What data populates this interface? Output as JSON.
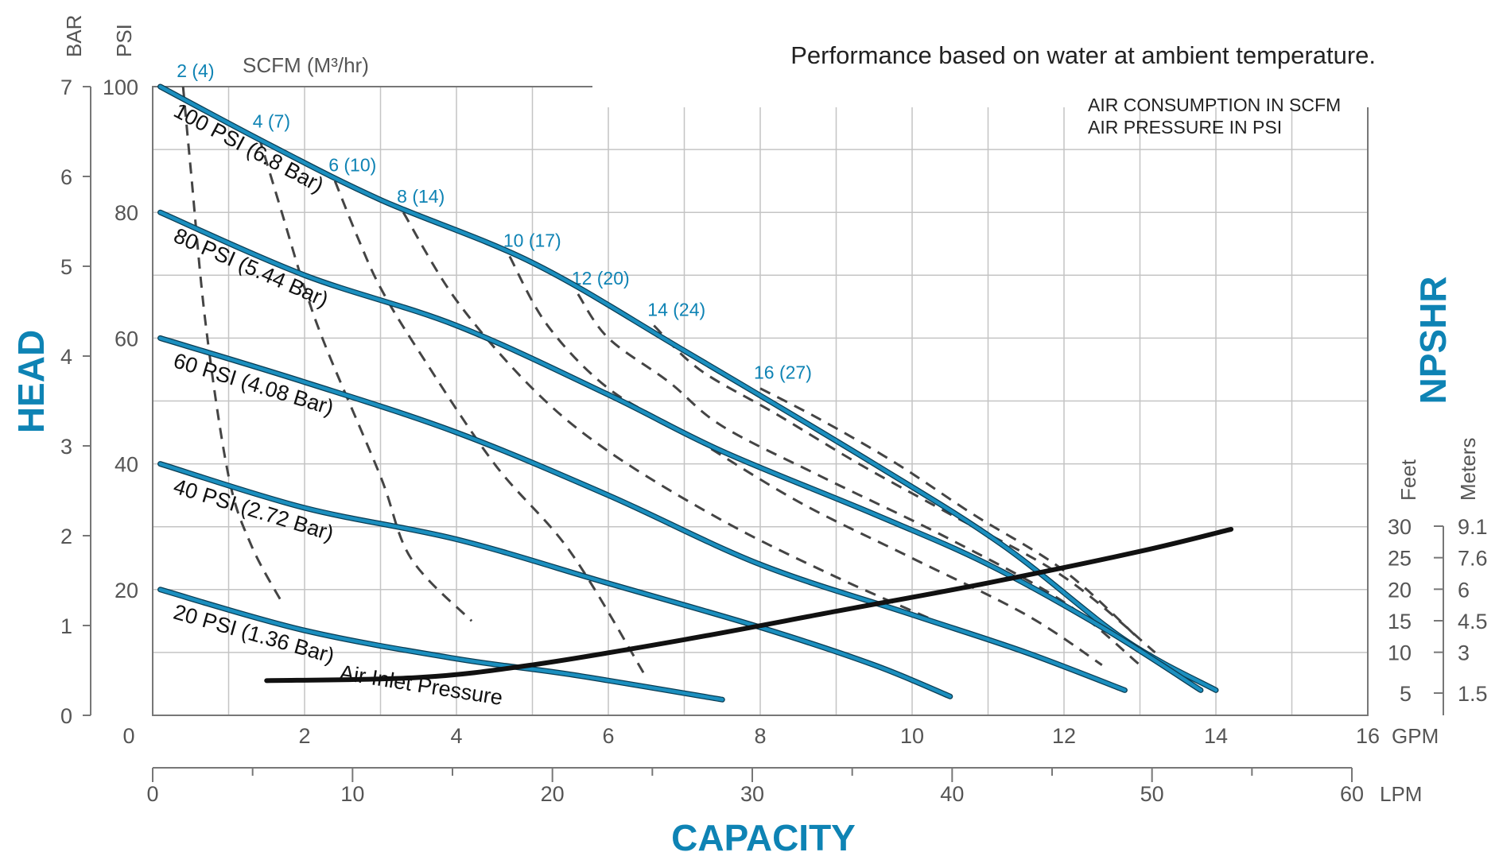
{
  "chart_data": {
    "type": "line",
    "title": "Performance based on water at ambient temperature.",
    "notes": [
      "AIR CONSUMPTION IN SCFM",
      "AIR PRESSURE IN PSI"
    ],
    "xlabel": "CAPACITY",
    "ylabel": "HEAD",
    "right_axis_title": "NPSHR",
    "x_gpm": {
      "unit": "GPM",
      "ticks": [
        "0",
        "2",
        "4",
        "6",
        "8",
        "10",
        "12",
        "14",
        "16"
      ],
      "range": [
        0,
        16
      ]
    },
    "x_lpm": {
      "unit": "LPM",
      "ticks": [
        "0",
        "10",
        "20",
        "30",
        "40",
        "50",
        "60"
      ],
      "range": [
        0,
        60
      ]
    },
    "y_psi": {
      "unit": "PSI",
      "ticks": [
        "20",
        "40",
        "60",
        "80",
        "100"
      ],
      "range": [
        0,
        100
      ]
    },
    "y_bar": {
      "unit": "BAR",
      "ticks": [
        "0",
        "1",
        "2",
        "3",
        "4",
        "5",
        "6",
        "7"
      ],
      "range": [
        0,
        7
      ]
    },
    "npshr_feet": {
      "unit": "Feet",
      "ticks": [
        "5",
        "10",
        "15",
        "20",
        "25",
        "30"
      ]
    },
    "npshr_meters": {
      "unit": "Meters",
      "ticks": [
        "1.5",
        "3",
        "4.5",
        "6",
        "7.6",
        "9.1"
      ]
    },
    "air_flow_header": "SCFM (M³/hr)",
    "grid": true,
    "series": [
      {
        "name": "100 PSI (6.8 Bar)",
        "x": [
          0.1,
          1.5,
          3.0,
          5.0,
          7.0,
          9.5,
          11.2,
          12.8,
          14.0
        ],
        "y": [
          100,
          91,
          82,
          72,
          58,
          40,
          27,
          12,
          4
        ]
      },
      {
        "name": "80 PSI (5.44 Bar)",
        "x": [
          0.1,
          2.0,
          4.0,
          6.0,
          7.5,
          9.5,
          11.0,
          12.5,
          13.8
        ],
        "y": [
          80,
          70,
          62,
          51,
          42,
          32,
          24,
          14,
          4
        ]
      },
      {
        "name": "60 PSI (4.08 Bar)",
        "x": [
          0.1,
          2.0,
          4.0,
          6.0,
          8.0,
          10.0,
          11.5,
          12.8
        ],
        "y": [
          60,
          53,
          45,
          35,
          24,
          16,
          10,
          4
        ]
      },
      {
        "name": "40 PSI (2.72 Bar)",
        "x": [
          0.1,
          2.0,
          4.0,
          6.0,
          8.0,
          9.5,
          10.5
        ],
        "y": [
          40,
          33,
          28,
          21,
          14,
          8,
          3
        ]
      },
      {
        "name": "20 PSI (1.36 Bar)",
        "x": [
          0.1,
          2.0,
          4.0,
          5.5,
          7.5
        ],
        "y": [
          20,
          13.5,
          9,
          6.5,
          2.5
        ]
      }
    ],
    "air_consumption": [
      {
        "label": "2 (4)",
        "x": [
          0.4,
          0.5,
          0.7,
          1.0,
          1.3,
          1.7
        ],
        "y": [
          100,
          87,
          62,
          38,
          27,
          18
        ]
      },
      {
        "label": "4 (7)",
        "x": [
          1.4,
          1.7,
          2.0,
          2.3,
          3.0,
          3.4,
          4.2
        ],
        "y": [
          92,
          80,
          68,
          58,
          38,
          25,
          15
        ]
      },
      {
        "label": "6 (10)",
        "x": [
          2.4,
          2.7,
          3.0,
          3.5,
          4.5,
          5.5,
          6.5
        ],
        "y": [
          85,
          76,
          68,
          58,
          40,
          26,
          6
        ]
      },
      {
        "label": "8 (14)",
        "x": [
          3.3,
          4.0,
          5.0,
          6.0,
          7.5,
          9.0,
          10.5
        ],
        "y": [
          80,
          66,
          52,
          42,
          31,
          22,
          14
        ]
      },
      {
        "label": "10 (17)",
        "x": [
          4.7,
          5.2,
          6.0,
          7.0,
          8.5,
          10.0,
          11.5,
          12.5
        ],
        "y": [
          73,
          62,
          52,
          45,
          34,
          25,
          16,
          8
        ]
      },
      {
        "label": "12 (20)",
        "x": [
          5.6,
          6.0,
          6.8,
          7.5,
          8.8,
          10.5,
          12.0,
          13.0
        ],
        "y": [
          67,
          60,
          53,
          46,
          38,
          28,
          18,
          8
        ]
      },
      {
        "label": "14 (24)",
        "x": [
          6.6,
          7.2,
          8.2,
          9.3,
          10.5,
          12.0,
          13.2
        ],
        "y": [
          62,
          55,
          48,
          40,
          32,
          22,
          10
        ]
      },
      {
        "label": "16 (27)",
        "x": [
          8.0,
          8.8,
          9.8,
          10.8,
          12.0,
          13.0
        ],
        "y": [
          52,
          47,
          40,
          32,
          23,
          12
        ]
      }
    ],
    "npshr_curve": {
      "name": "Air Inlet Pressure",
      "x": [
        1.5,
        3.5,
        5.0,
        7.0,
        9.0,
        11.0,
        13.0,
        14.2
      ],
      "y": [
        5.5,
        6.0,
        8.0,
        12.0,
        16.5,
        21.0,
        26.0,
        29.5
      ]
    }
  }
}
